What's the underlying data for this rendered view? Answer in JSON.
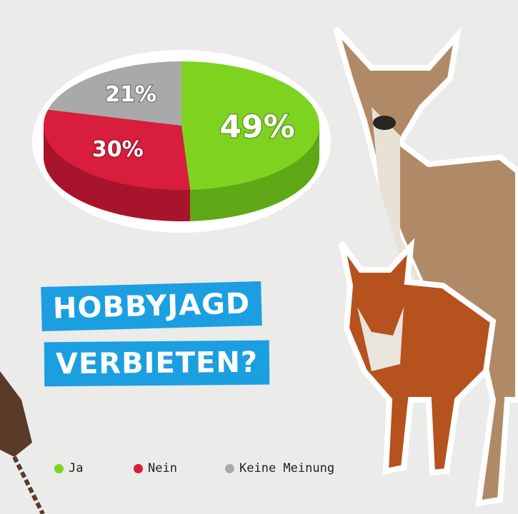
{
  "chart_data": {
    "type": "pie",
    "style": "3d",
    "categories": [
      "Ja",
      "Nein",
      "Keine Meinung"
    ],
    "values": [
      49,
      30,
      21
    ],
    "labels": [
      "49%",
      "30%",
      "21%"
    ],
    "colors": [
      "#7ed321",
      "#d81e3c",
      "#a9a9a9"
    ],
    "side_colors": [
      "#5fa816",
      "#a8142c",
      "#8a8a8a"
    ],
    "legend_position": "bottom"
  },
  "title": {
    "line1": "HOBBYJAGD",
    "line2": "VERBIETEN?"
  },
  "accent": "#1b9fe0"
}
